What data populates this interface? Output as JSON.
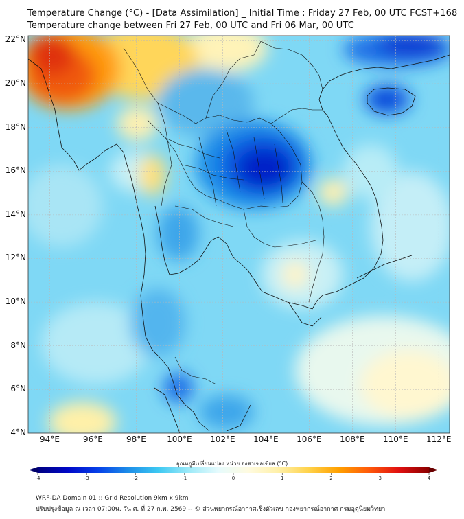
{
  "title_line1": "Temperature Change (°C) - [Data Assimilation] _ Initial Time : Friday 27 Feb, 00 UTC FCST+168",
  "title_line2": "Temperature change between Fri 27 Feb, 00 UTC and Fri 06 Mar, 00 UTC",
  "lat_labels": [
    "22°N",
    "20°N",
    "18°N",
    "16°N",
    "14°N",
    "12°N",
    "10°N",
    "8°N",
    "6°N",
    "4°N"
  ],
  "lon_labels": [
    "94°E",
    "96°E",
    "98°E",
    "100°E",
    "102°E",
    "104°E",
    "106°E",
    "108°E",
    "110°E",
    "112°E"
  ],
  "map_extent": {
    "lon_min": 93,
    "lon_max": 112.5,
    "lat_min": 4,
    "lat_max": 22.2
  },
  "colorbar": {
    "label": "อุณหภูมิเปลี่ยนแปลง หน่วย องศาเซลเซียส (°C)",
    "ticks": [
      "-4",
      "-3",
      "-2",
      "-1",
      "0",
      "1",
      "2",
      "3",
      "4"
    ],
    "min": -4,
    "max": 4,
    "colors": [
      "#000080",
      "#0008c8",
      "#0640e8",
      "#1d8de8",
      "#3dc8f2",
      "#9be9f8",
      "#e6fbfd",
      "#fffbe0",
      "#fff0a8",
      "#ffd24a",
      "#ffa000",
      "#ff5a0a",
      "#e01010",
      "#8b0000"
    ]
  },
  "footer_line1": "WRF-DA Domain 01 :: Grid Resolution 9km x 9km",
  "footer_line2": "ปรับปรุงข้อมูล ณ เวลา 07:00น. วัน ศ. ที่ 27 ก.พ. 2569 -- © ส่วนพยากรณ์อากาศเชิงตัวเลข กองพยากรณ์อากาศ กรมอุตุนิยมวิทยา"
}
